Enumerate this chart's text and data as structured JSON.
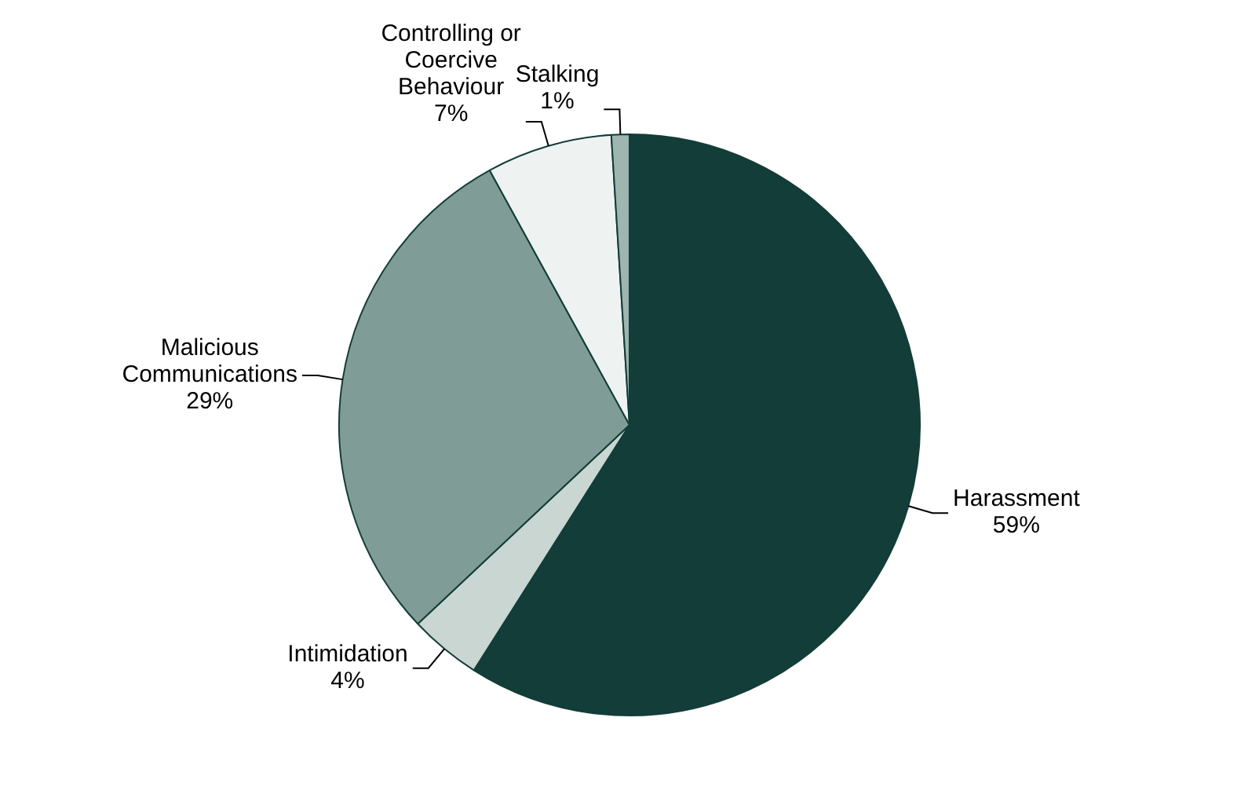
{
  "chart_data": {
    "type": "pie",
    "categories": [
      "Harassment",
      "Intimidation",
      "Malicious Communications",
      "Controlling or Coercive Behaviour",
      "Stalking"
    ],
    "values": [
      59,
      4,
      29,
      7,
      1
    ],
    "colors": [
      "#133d38",
      "#c9d6d2",
      "#7f9c96",
      "#eef3f1",
      "#9fb5af"
    ],
    "value_labels": [
      "59%",
      "4%",
      "29%",
      "7%",
      "1%"
    ],
    "legend": false
  }
}
